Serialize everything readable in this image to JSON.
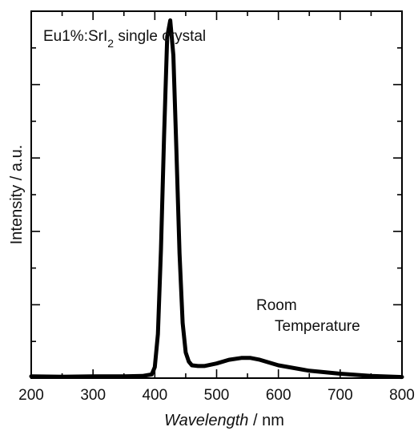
{
  "chart_data": {
    "type": "line",
    "title": "",
    "xlabel": {
      "italic": "Wavelength",
      "rest": " / nm"
    },
    "ylabel": "Intensity / a.u.",
    "xlim": [
      200,
      800
    ],
    "xticks": [
      200,
      300,
      400,
      500,
      600,
      700,
      800
    ],
    "xtick_labels": [
      "200",
      "300",
      "400",
      "500",
      "600",
      "700",
      "800"
    ],
    "ylim": [
      0,
      1.0
    ],
    "ytick_labels": [],
    "grid": false,
    "legend": "none",
    "annotations": {
      "sample": {
        "main": "Eu1%:SrI",
        "sub": "2",
        "tail": " single crystal"
      },
      "condition_line1": "Room",
      "condition_line2": "Temperature"
    },
    "colors": {
      "line": "#000000",
      "axes": "#000000",
      "background": "#ffffff"
    },
    "series": [
      {
        "x": [
          200,
          250,
          300,
          350,
          380,
          395,
          400,
          405,
          410,
          415,
          420,
          425,
          430,
          435,
          440,
          445,
          450,
          455,
          460,
          470,
          480,
          500,
          520,
          540,
          555,
          570,
          600,
          650,
          700,
          750,
          800
        ],
        "y": [
          0.005,
          0.004,
          0.005,
          0.005,
          0.006,
          0.01,
          0.03,
          0.12,
          0.35,
          0.66,
          0.93,
          0.975,
          0.88,
          0.62,
          0.34,
          0.15,
          0.07,
          0.045,
          0.035,
          0.033,
          0.033,
          0.04,
          0.05,
          0.055,
          0.055,
          0.05,
          0.035,
          0.02,
          0.012,
          0.006,
          0.003
        ]
      }
    ]
  }
}
